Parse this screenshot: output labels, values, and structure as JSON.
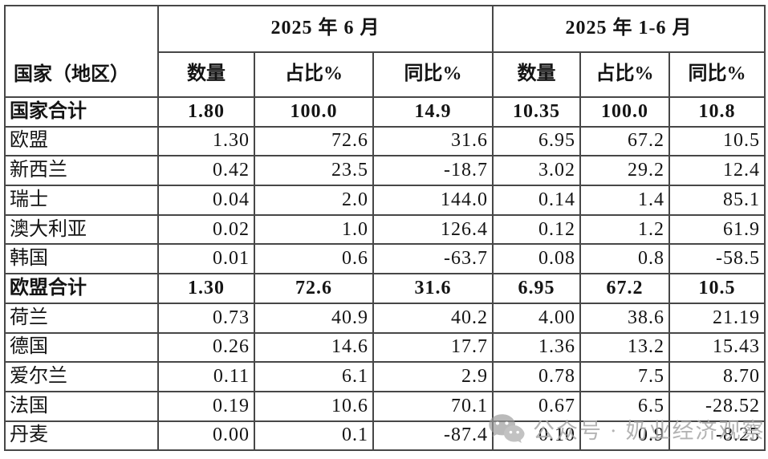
{
  "colors": {
    "border": "#474747",
    "text": "#141414",
    "background": "#ffffff",
    "watermark": "#a6a6a6"
  },
  "chart_data": {
    "type": "table",
    "corner_label": "国家（地区）",
    "period_headers": [
      "2025 年 6 月",
      "2025 年 1-6 月"
    ],
    "sub_headers": [
      "数量",
      "占比%",
      "同比%",
      "数量",
      "占比%",
      "同比%"
    ],
    "rows": [
      {
        "name": "国家合计",
        "bold": true,
        "values": [
          "1.80",
          "100.0",
          "14.9",
          "10.35",
          "100.0",
          "10.8"
        ]
      },
      {
        "name": "欧盟",
        "bold": false,
        "values": [
          "1.30",
          "72.6",
          "31.6",
          "6.95",
          "67.2",
          "10.5"
        ]
      },
      {
        "name": "新西兰",
        "bold": false,
        "values": [
          "0.42",
          "23.5",
          "-18.7",
          "3.02",
          "29.2",
          "12.4"
        ]
      },
      {
        "name": "瑞士",
        "bold": false,
        "values": [
          "0.04",
          "2.0",
          "144.0",
          "0.14",
          "1.4",
          "85.1"
        ]
      },
      {
        "name": "澳大利亚",
        "bold": false,
        "values": [
          "0.02",
          "1.0",
          "126.4",
          "0.12",
          "1.2",
          "61.9"
        ]
      },
      {
        "name": "韩国",
        "bold": false,
        "values": [
          "0.01",
          "0.6",
          "-63.7",
          "0.08",
          "0.8",
          "-58.5"
        ]
      },
      {
        "name": "欧盟合计",
        "bold": true,
        "values": [
          "1.30",
          "72.6",
          "31.6",
          "6.95",
          "67.2",
          "10.5"
        ]
      },
      {
        "name": "荷兰",
        "bold": false,
        "values": [
          "0.73",
          "40.9",
          "40.2",
          "4.00",
          "38.6",
          "21.19"
        ]
      },
      {
        "name": "德国",
        "bold": false,
        "values": [
          "0.26",
          "14.6",
          "17.7",
          "1.36",
          "13.2",
          "15.43"
        ]
      },
      {
        "name": "爱尔兰",
        "bold": false,
        "values": [
          "0.11",
          "6.1",
          "2.9",
          "0.78",
          "7.5",
          "8.70"
        ]
      },
      {
        "name": "法国",
        "bold": false,
        "values": [
          "0.19",
          "10.6",
          "70.1",
          "0.67",
          "6.5",
          "-28.52"
        ]
      },
      {
        "name": "丹麦",
        "bold": false,
        "values": [
          "0.00",
          "0.1",
          "-87.4",
          "0.10",
          "0.9",
          "-8.25"
        ]
      }
    ]
  },
  "watermark": {
    "icon": "wechat-icon",
    "text": "公众号 · 奶业经济观察"
  }
}
